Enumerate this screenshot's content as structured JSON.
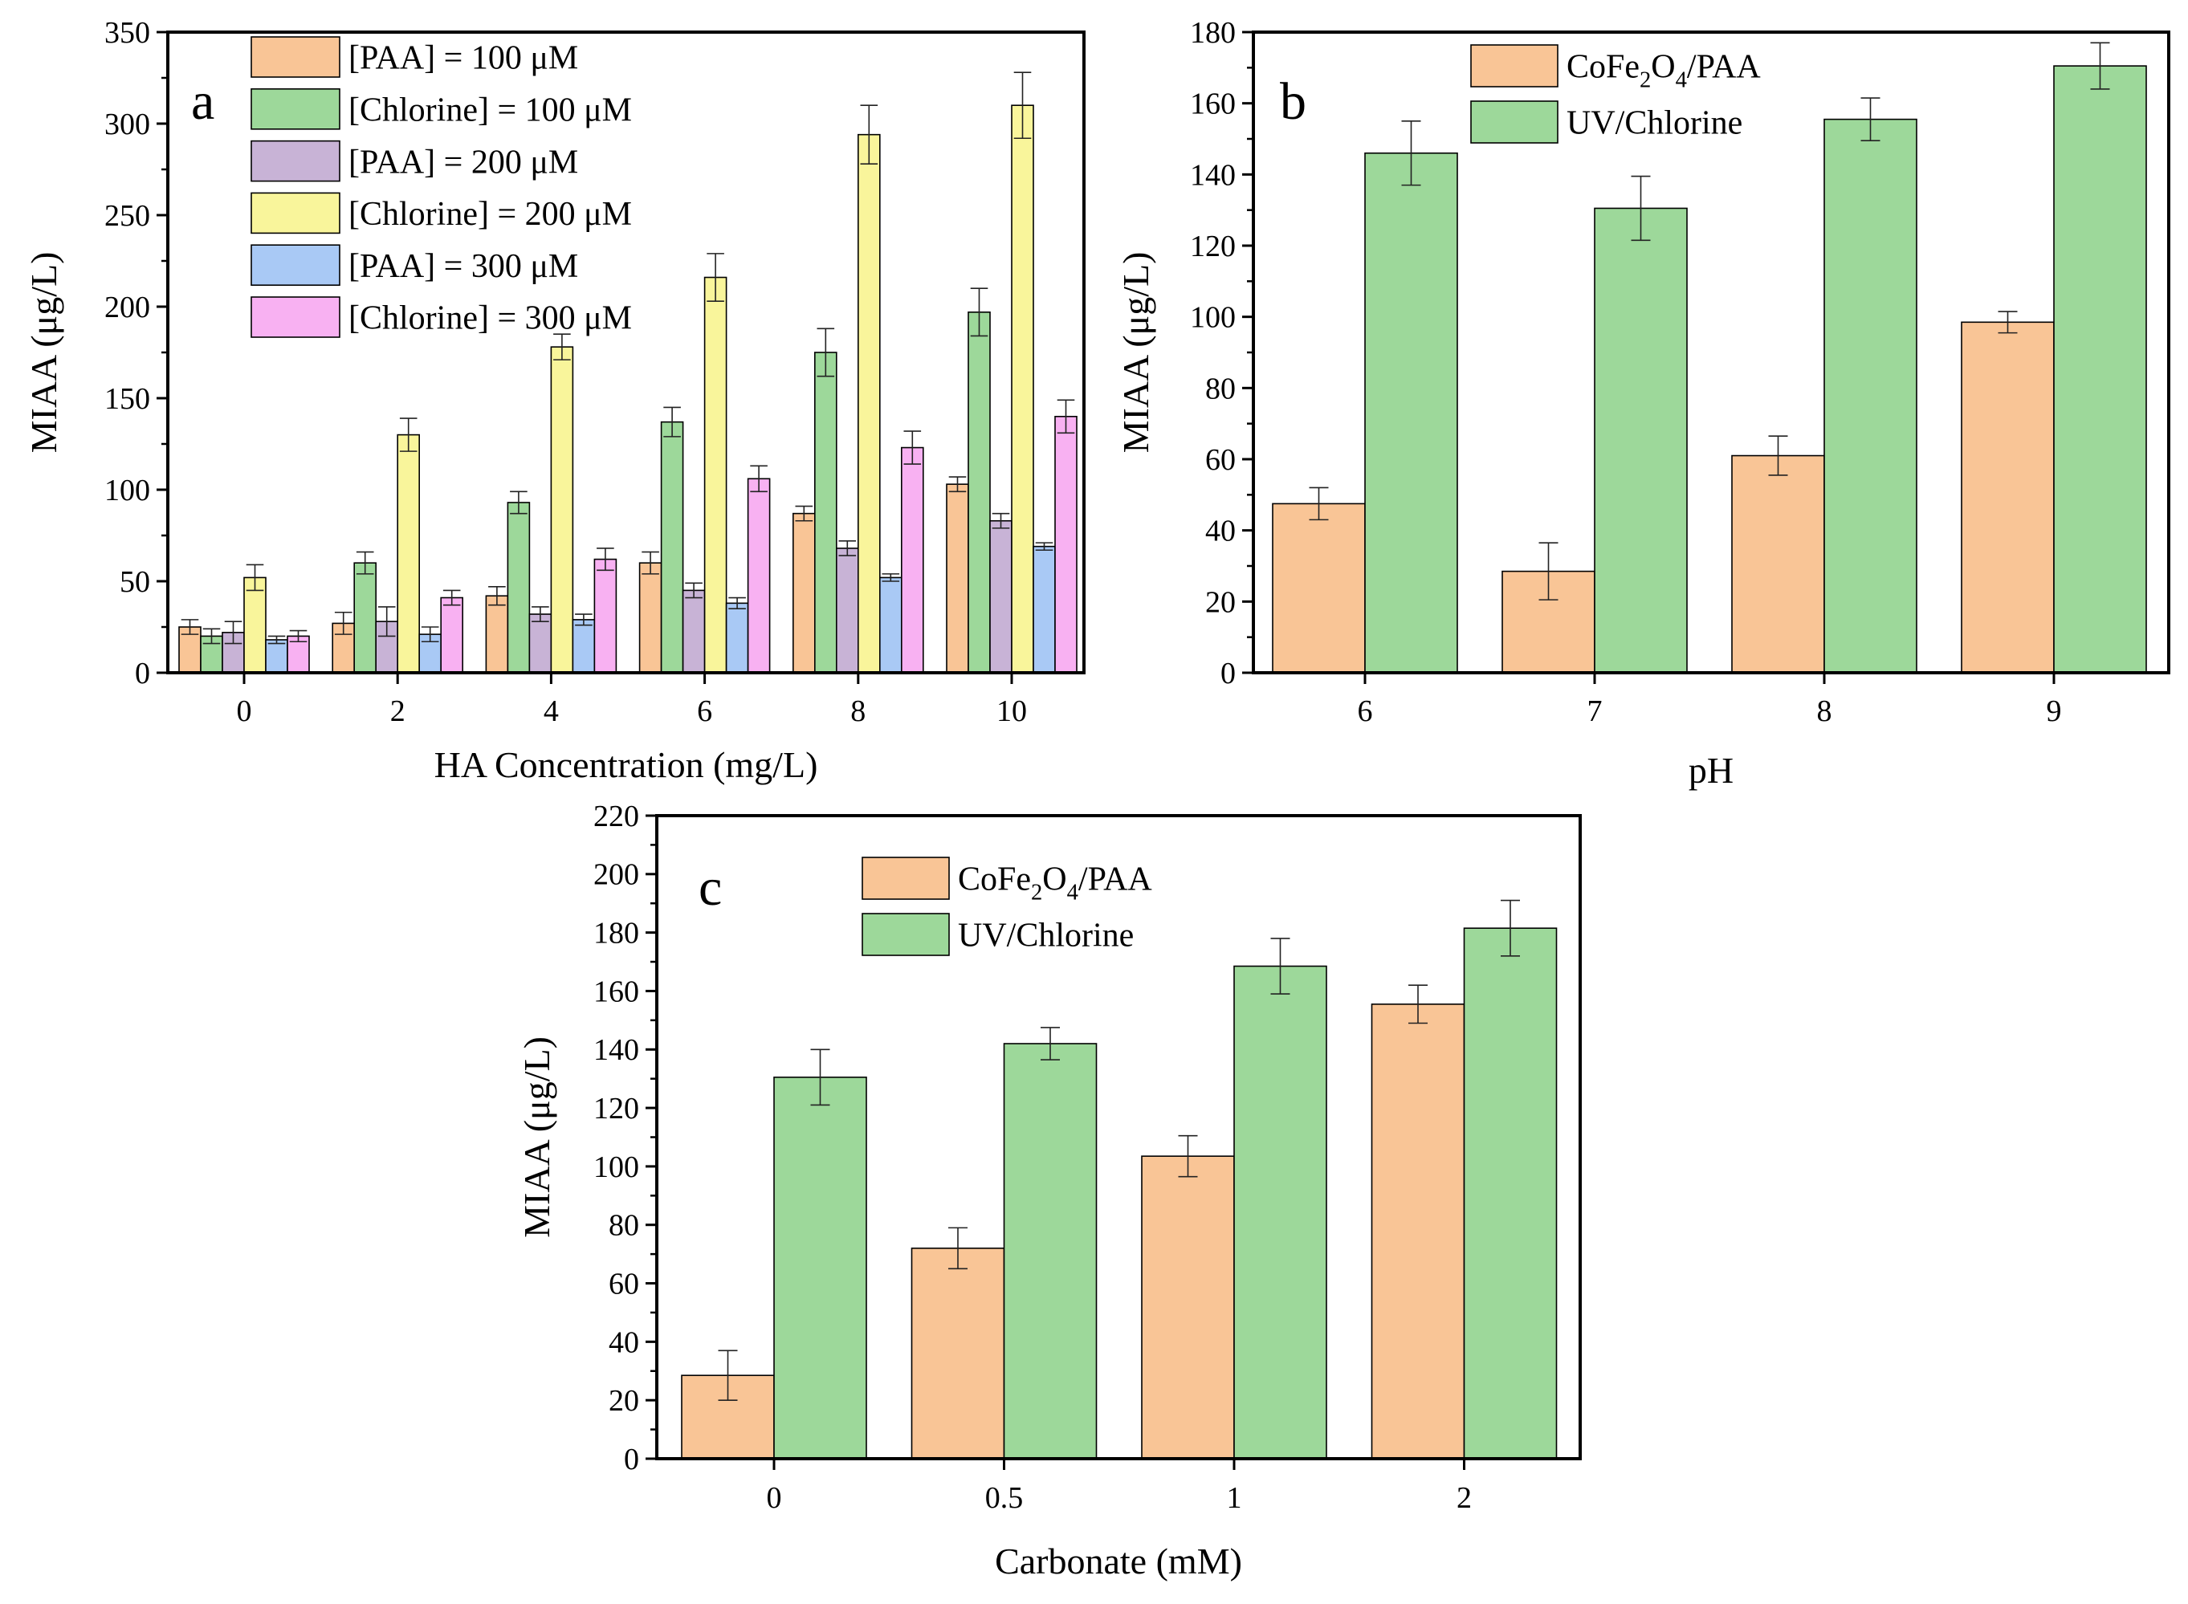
{
  "chart_data": [
    {
      "panel": "a",
      "type": "bar",
      "xlabel": "HA Concentration (mg/L)",
      "ylabel": "MIAA (μg/L)",
      "ylim": [
        0,
        350
      ],
      "yticks": [
        0,
        50,
        100,
        150,
        200,
        250,
        300,
        350
      ],
      "legend_position": "top-left",
      "categories": [
        "0",
        "2",
        "4",
        "6",
        "8",
        "10"
      ],
      "series": [
        {
          "name": "[PAA] = 100 μM",
          "color": "#f9c596",
          "values": [
            25,
            27,
            42,
            60,
            87,
            103
          ],
          "errors": [
            4,
            6,
            5,
            6,
            4,
            4
          ]
        },
        {
          "name": "[Chlorine] = 100 μM",
          "color": "#9dd89a",
          "values": [
            20,
            60,
            93,
            137,
            175,
            197
          ],
          "errors": [
            4,
            6,
            6,
            8,
            13,
            13
          ]
        },
        {
          "name": "[PAA] = 200 μM",
          "color": "#c8b3d6",
          "values": [
            22,
            28,
            32,
            45,
            68,
            83
          ],
          "errors": [
            6,
            8,
            4,
            4,
            4,
            4
          ]
        },
        {
          "name": "[Chlorine] = 200 μM",
          "color": "#f9f59b",
          "values": [
            52,
            130,
            178,
            216,
            294,
            310
          ],
          "errors": [
            7,
            9,
            7,
            13,
            16,
            18
          ]
        },
        {
          "name": "[PAA] = 300 μM",
          "color": "#a9c9f5",
          "values": [
            18,
            21,
            29,
            38,
            52,
            69
          ],
          "errors": [
            2,
            4,
            3,
            3,
            2,
            2
          ]
        },
        {
          "name": "[Chlorine] = 300 μM",
          "color": "#f8b1f2",
          "values": [
            20,
            41,
            62,
            106,
            123,
            140
          ],
          "errors": [
            3,
            4,
            6,
            7,
            9,
            9
          ]
        }
      ]
    },
    {
      "panel": "b",
      "type": "bar",
      "xlabel": "pH",
      "ylabel": "MIAA (μg/L)",
      "ylim": [
        0,
        180
      ],
      "yticks": [
        0,
        20,
        40,
        60,
        80,
        100,
        120,
        140,
        160,
        180
      ],
      "legend_position": "top-left",
      "categories": [
        "6",
        "7",
        "8",
        "9"
      ],
      "series": [
        {
          "name": "CoFe2O4/PAA",
          "color": "#f9c596",
          "values": [
            47.5,
            28.5,
            61,
            98.5
          ],
          "errors": [
            4.5,
            8,
            5.5,
            3
          ]
        },
        {
          "name": "UV/Chlorine",
          "color": "#9dd89a",
          "values": [
            146,
            130.5,
            155.5,
            170.5
          ],
          "errors": [
            9,
            9,
            6,
            6.5
          ]
        }
      ]
    },
    {
      "panel": "c",
      "type": "bar",
      "xlabel": "Carbonate (mM)",
      "ylabel": "MIAA (μg/L)",
      "ylim": [
        0,
        220
      ],
      "yticks": [
        0,
        20,
        40,
        60,
        80,
        100,
        120,
        140,
        160,
        180,
        200,
        220
      ],
      "legend_position": "top-left",
      "categories": [
        "0",
        "0.5",
        "1",
        "2"
      ],
      "series": [
        {
          "name": "CoFe2O4/PAA",
          "color": "#f9c596",
          "values": [
            28.5,
            72,
            103.5,
            155.5
          ],
          "errors": [
            8.5,
            7,
            7,
            6.5
          ]
        },
        {
          "name": "UV/Chlorine",
          "color": "#9dd89a",
          "values": [
            130.5,
            142,
            168.5,
            181.5
          ],
          "errors": [
            9.5,
            5.5,
            9.5,
            9.5
          ]
        }
      ]
    }
  ]
}
